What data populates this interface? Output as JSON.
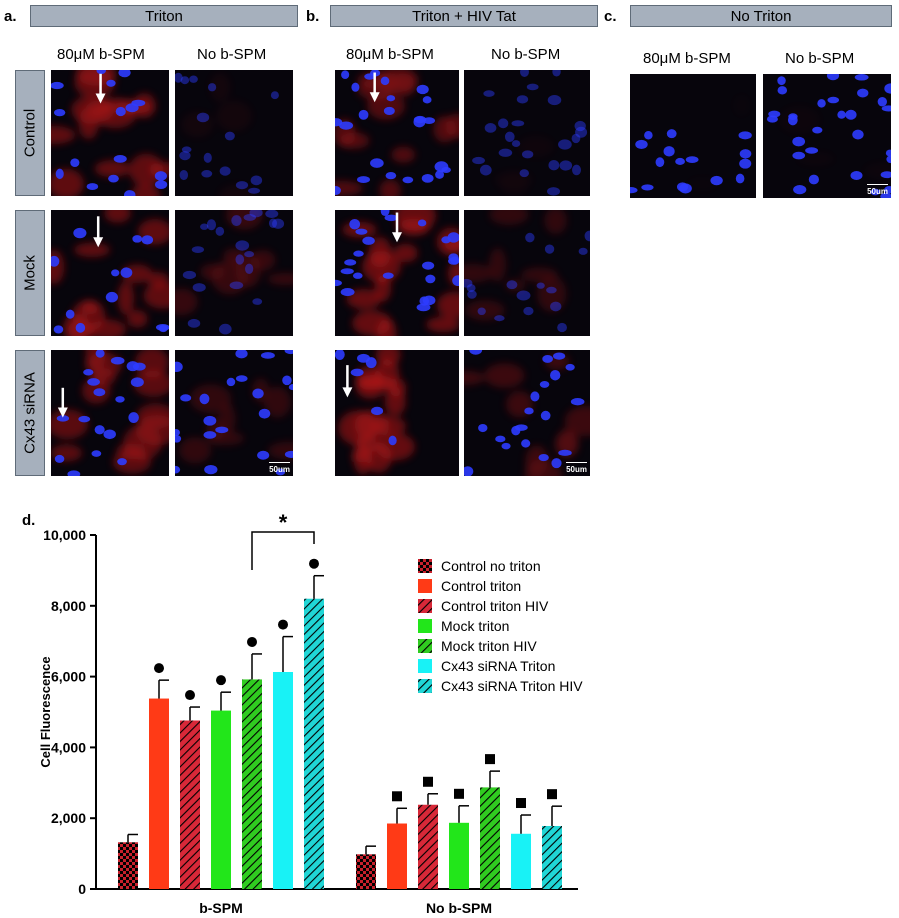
{
  "panels": {
    "a": {
      "letter": "a.",
      "title": "Triton"
    },
    "b": {
      "letter": "b.",
      "title": "Triton + HIV Tat"
    },
    "c": {
      "letter": "c.",
      "title": "No Triton"
    },
    "d": {
      "letter": "d."
    }
  },
  "columns": {
    "with_spm": "80μM b-SPM",
    "no_spm": "No b-SPM"
  },
  "rows": {
    "control": "Control",
    "mock": "Mock",
    "sirna": "Cx43 siRNA"
  },
  "scale_bar": "50um",
  "colors": {
    "nucleus": "#2d3cff",
    "stain": "#c21818",
    "banner": "#a6b0bd",
    "background": "#07050c"
  },
  "chart_data": {
    "type": "bar",
    "categories": [
      "b-SPM",
      "No b-SPM"
    ],
    "ylabel": "Cell Fluorescence",
    "xlabel": "",
    "ylim": [
      0,
      10000
    ],
    "yticks": [
      "0",
      "2,000",
      "4,000",
      "6,000",
      "8,000",
      "10,000"
    ],
    "grid": false,
    "legend_position": "top-right",
    "series": [
      {
        "name": "Control no triton",
        "color": "#c8202c",
        "pattern": "checker",
        "values": [
          1320,
          980
        ],
        "errors": [
          220,
          230
        ],
        "markers": [
          "",
          ""
        ]
      },
      {
        "name": "Control triton",
        "color": "#ff3a16",
        "pattern": "solid",
        "values": [
          5380,
          1850
        ],
        "errors": [
          520,
          430
        ],
        "markers": [
          "circle",
          "square"
        ]
      },
      {
        "name": "Control triton HIV",
        "color": "#d82838",
        "pattern": "hatch",
        "values": [
          4760,
          2380
        ],
        "errors": [
          380,
          310
        ],
        "markers": [
          "circle",
          "square"
        ]
      },
      {
        "name": "Mock triton",
        "color": "#22e61a",
        "pattern": "solid",
        "values": [
          5040,
          1870
        ],
        "errors": [
          520,
          480
        ],
        "markers": [
          "circle",
          "square"
        ]
      },
      {
        "name": "Mock triton HIV",
        "color": "#30cc20",
        "pattern": "hatch",
        "values": [
          5920,
          2870
        ],
        "errors": [
          720,
          460
        ],
        "markers": [
          "circle",
          "square"
        ]
      },
      {
        "name": "Cx43 siRNA Triton",
        "color": "#18f2f6",
        "pattern": "solid",
        "values": [
          6130,
          1560
        ],
        "errors": [
          1000,
          530
        ],
        "markers": [
          "circle",
          "square"
        ]
      },
      {
        "name": "Cx43 siRNA Triton HIV",
        "color": "#20d6d6",
        "pattern": "hatch",
        "values": [
          8200,
          1780
        ],
        "errors": [
          650,
          560
        ],
        "markers": [
          "circle",
          "square"
        ]
      }
    ],
    "significance": {
      "label": "*",
      "from_series": 4,
      "to_series": 6,
      "category": 0
    }
  }
}
